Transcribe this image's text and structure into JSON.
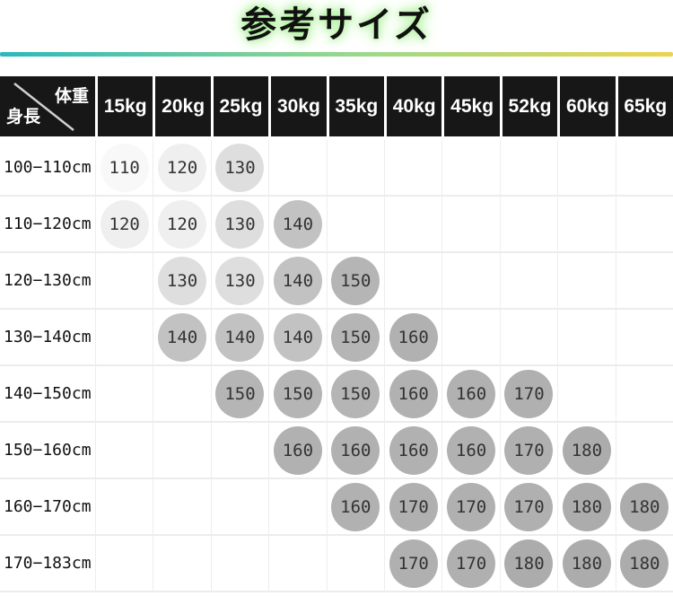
{
  "title": "参考サイズ",
  "accent": {
    "line_gradient_left": "#2cb9be",
    "line_gradient_mid": "#9ed98b",
    "line_gradient_right": "#ecd34f",
    "title_glow": "#b3f2a1",
    "header_bg": "#171717",
    "header_text": "#ffffff"
  },
  "table": {
    "corner": {
      "weight_label": "体重",
      "height_label": "身長"
    },
    "weight_columns": [
      "15kg",
      "20kg",
      "25kg",
      "30kg",
      "35kg",
      "40kg",
      "45kg",
      "52kg",
      "60kg",
      "65kg"
    ],
    "rows": [
      {
        "height_range": "100−110cm",
        "sizes": [
          "110",
          "120",
          "130",
          "",
          "",
          "",
          "",
          "",
          "",
          ""
        ]
      },
      {
        "height_range": "110−120cm",
        "sizes": [
          "120",
          "120",
          "130",
          "140",
          "",
          "",
          "",
          "",
          "",
          ""
        ]
      },
      {
        "height_range": "120−130cm",
        "sizes": [
          "",
          "130",
          "130",
          "140",
          "150",
          "",
          "",
          "",
          "",
          ""
        ]
      },
      {
        "height_range": "130−140cm",
        "sizes": [
          "",
          "140",
          "140",
          "140",
          "150",
          "160",
          "",
          "",
          "",
          ""
        ]
      },
      {
        "height_range": "140−150cm",
        "sizes": [
          "",
          "",
          "150",
          "150",
          "150",
          "160",
          "160",
          "170",
          "",
          ""
        ]
      },
      {
        "height_range": "150−160cm",
        "sizes": [
          "",
          "",
          "",
          "160",
          "160",
          "160",
          "160",
          "170",
          "180",
          ""
        ]
      },
      {
        "height_range": "160−170cm",
        "sizes": [
          "",
          "",
          "",
          "",
          "160",
          "170",
          "170",
          "170",
          "180",
          "180"
        ]
      },
      {
        "height_range": "170−183cm",
        "sizes": [
          "",
          "",
          "",
          "",
          "",
          "170",
          "170",
          "180",
          "180",
          "180"
        ]
      }
    ],
    "size_circle_colors": {
      "110": "#f8f8f8",
      "120": "#efefef",
      "130": "#dedede",
      "140": "#c2c2c2",
      "150": "#b5b5b5",
      "160": "#b1b1b1",
      "170": "#b0b0b0",
      "180": "#acacac"
    }
  },
  "chart_data": {
    "type": "table",
    "title": "参考サイズ",
    "columns": [
      "身長\\体重",
      "15kg",
      "20kg",
      "25kg",
      "30kg",
      "35kg",
      "40kg",
      "45kg",
      "52kg",
      "60kg",
      "65kg"
    ],
    "rows": [
      [
        "100−110cm",
        "110",
        "120",
        "130",
        "",
        "",
        "",
        "",
        "",
        "",
        ""
      ],
      [
        "110−120cm",
        "120",
        "120",
        "130",
        "140",
        "",
        "",
        "",
        "",
        "",
        ""
      ],
      [
        "120−130cm",
        "",
        "130",
        "130",
        "140",
        "150",
        "",
        "",
        "",
        "",
        ""
      ],
      [
        "130−140cm",
        "",
        "140",
        "140",
        "140",
        "150",
        "160",
        "",
        "",
        "",
        ""
      ],
      [
        "140−150cm",
        "",
        "",
        "150",
        "150",
        "150",
        "160",
        "160",
        "170",
        "",
        ""
      ],
      [
        "150−160cm",
        "",
        "",
        "",
        "160",
        "160",
        "160",
        "160",
        "170",
        "180",
        ""
      ],
      [
        "160−170cm",
        "",
        "",
        "",
        "",
        "160",
        "170",
        "170",
        "170",
        "180",
        "180"
      ],
      [
        "170−183cm",
        "",
        "",
        "",
        "",
        "",
        "170",
        "170",
        "180",
        "180",
        "180"
      ]
    ]
  }
}
